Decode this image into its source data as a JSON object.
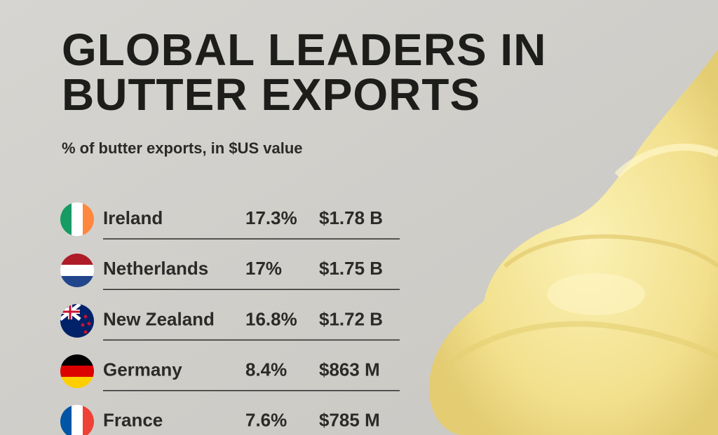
{
  "header": {
    "title_lines": [
      "GLOBAL LEADERS IN",
      "BUTTER EXPORTS"
    ],
    "subtitle": "% of butter exports, in $US value"
  },
  "table": {
    "rows": [
      [
        "Ireland",
        "17.3%",
        "$1.78 B"
      ],
      [
        "Netherlands",
        "17%",
        "$1.75 B"
      ],
      [
        "New Zealand",
        "16.8%",
        "$1.72 B"
      ],
      [
        "Germany",
        "8.4%",
        "$863 M"
      ],
      [
        "France",
        "7.6%",
        "$785 M"
      ]
    ]
  }
}
